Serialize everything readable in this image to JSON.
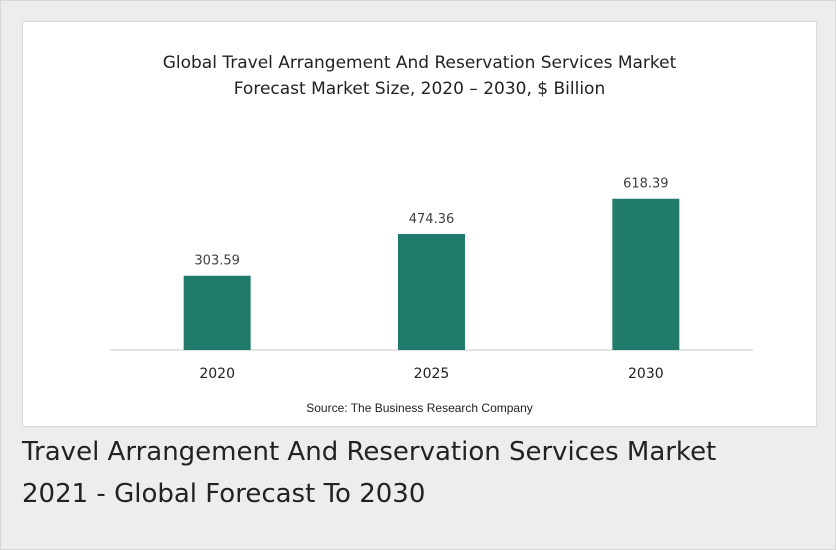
{
  "chart_data": {
    "type": "bar",
    "title_lines": [
      "Global Travel Arrangement And Reservation Services Market",
      "Forecast Market Size, 2020 – 2030, $ Billion"
    ],
    "categories": [
      "2020",
      "2025",
      "2030"
    ],
    "values": [
      303.59,
      474.36,
      618.39
    ],
    "value_labels": [
      "303.59",
      "474.36",
      "618.39"
    ],
    "xlabel": "",
    "ylabel": "",
    "ylim": [
      0,
      700
    ],
    "grid": false,
    "legend": "none",
    "bar_color": "#217b6c",
    "axis_color": "#c8c8c8",
    "source": "Source: The Business Research Company"
  },
  "caption": {
    "line1": "Travel Arrangement And Reservation Services Market",
    "line2": "2021 - Global Forecast To 2030"
  }
}
